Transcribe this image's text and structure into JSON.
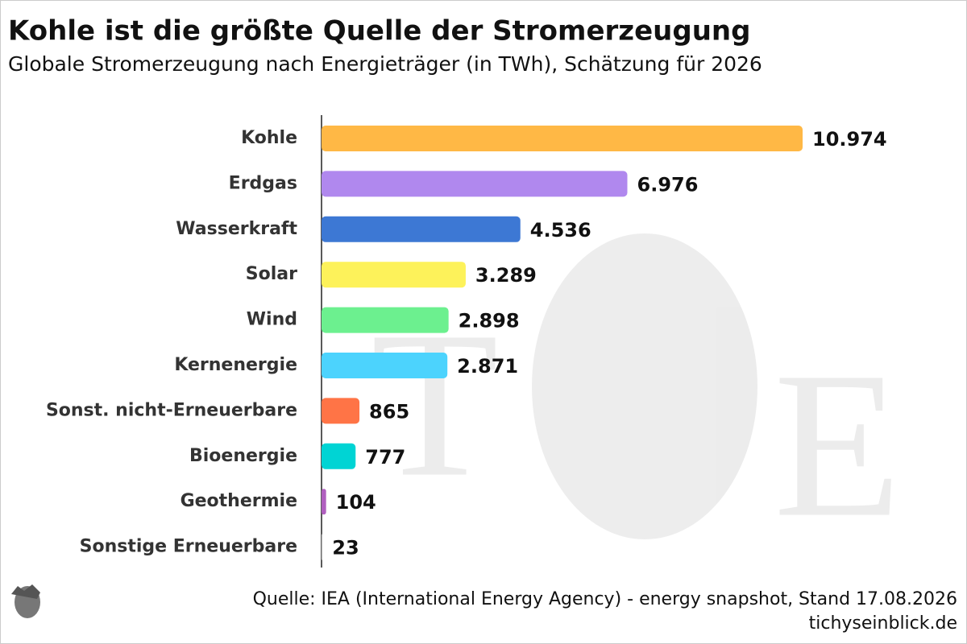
{
  "chart_data": {
    "type": "bar",
    "orientation": "horizontal",
    "title": "Kohle ist die größte Quelle der Stromerzeugung",
    "subtitle": "Globale Stromerzeugung nach Energieträger (in TWh), Schätzung für 2026",
    "categories": [
      "Kohle",
      "Erdgas",
      "Wasserkraft",
      "Solar",
      "Wind",
      "Kernenergie",
      "Sonst. nicht-Erneuerbare",
      "Bioenergie",
      "Geothermie",
      "Sonstige Erneuerbare"
    ],
    "values": [
      10974,
      6976,
      4536,
      3289,
      2898,
      2871,
      865,
      777,
      104,
      23
    ],
    "value_labels": [
      "10.974",
      "6.976",
      "4.536",
      "3.289",
      "2.898",
      "2.871",
      "865",
      "777",
      "104",
      "23"
    ],
    "colors": [
      "#ffb845",
      "#b088ee",
      "#3d78d4",
      "#fdf25a",
      "#6cf08f",
      "#4cd3fd",
      "#ff7446",
      "#00d4d4",
      "#b05fbf",
      "#c8c8c8"
    ],
    "source": "Quelle: IEA (International Energy Agency) - energy snapshot, Stand 17.08.2026",
    "publisher": "tichyseinblick.de"
  }
}
